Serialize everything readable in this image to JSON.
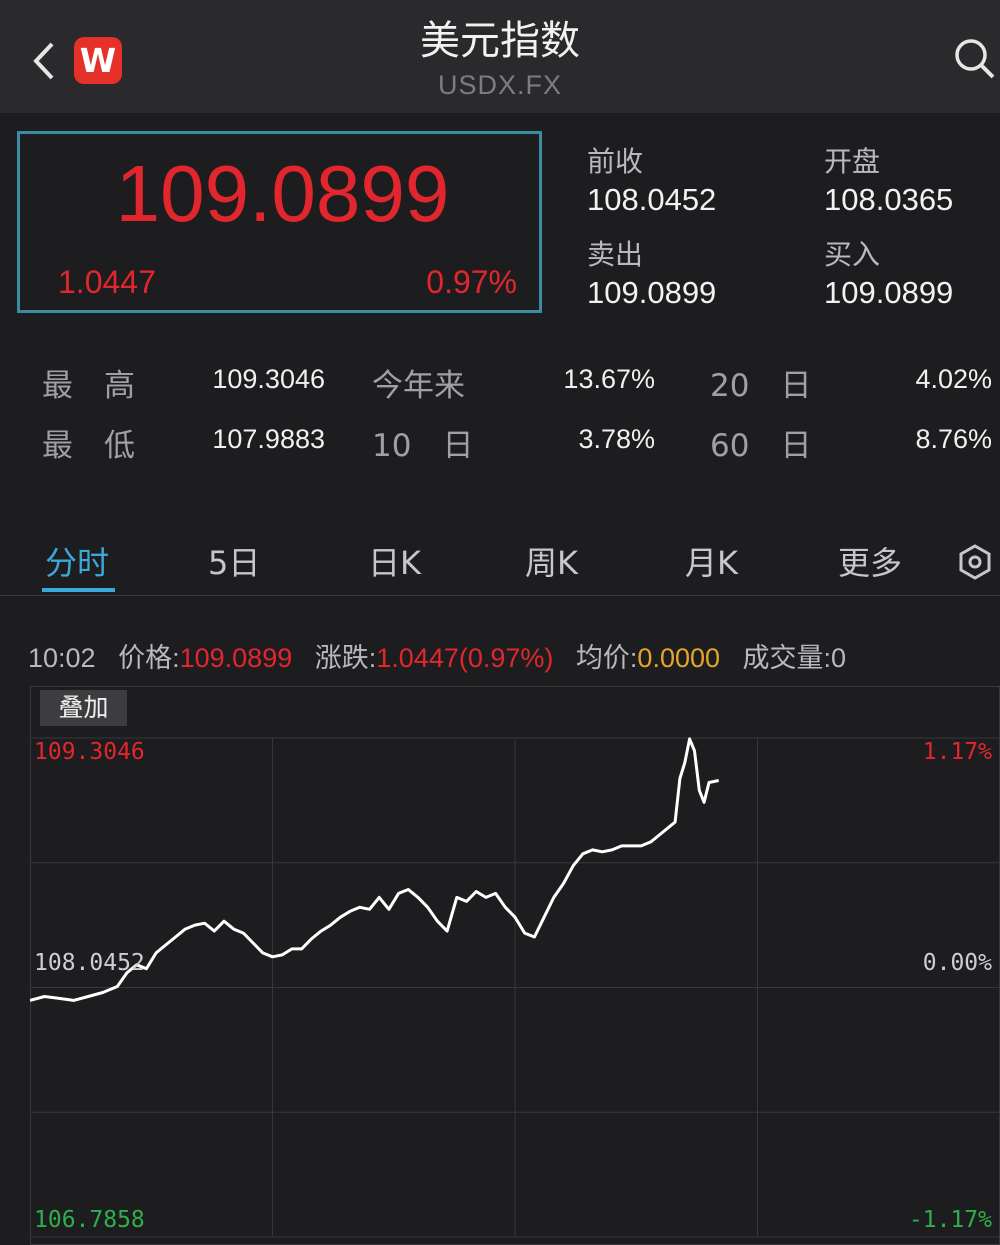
{
  "header": {
    "title": "美元指数",
    "subtitle": "USDX.FX",
    "logo_letter": "W"
  },
  "quote": {
    "price": "109.0899",
    "change": "1.0447",
    "change_pct": "0.97%",
    "prev_close_label": "前收",
    "prev_close": "108.0452",
    "open_label": "开盘",
    "open": "108.0365",
    "sell_label": "卖出",
    "sell": "109.0899",
    "buy_label": "买入",
    "buy": "109.0899"
  },
  "stats": {
    "high_label": "最　高",
    "high": "109.3046",
    "low_label": "最　低",
    "low": "107.9883",
    "ytd_label": "今年来",
    "ytd": "13.67%",
    "d10_label": "10　日",
    "d10": "3.78%",
    "d20_label": "20　日",
    "d20": "4.02%",
    "d60_label": "60　日",
    "d60": "8.76%"
  },
  "tabs": [
    "分时",
    "5日",
    "日K",
    "周K",
    "月K",
    "更多"
  ],
  "active_tab": "分时",
  "info": {
    "time": "10:02",
    "price_label": "价格:",
    "price": "109.0899",
    "change_label": "涨跌:",
    "change": "1.0447(0.97%)",
    "avg_label": "均价:",
    "avg": "0.0000",
    "volume_label": "成交量:",
    "volume": "0"
  },
  "overlay_button": "叠加",
  "colors": {
    "up": "#e2262d",
    "down": "#2fae4a",
    "accent": "#3aa8d8",
    "gold": "#e3a52a",
    "box_border": "#3b8ca3"
  },
  "icons": [
    "back-chevron-icon",
    "w-logo-icon",
    "search-icon",
    "settings-hexagon-icon"
  ],
  "chart_data": {
    "type": "line",
    "x_unit": "time progress (fraction of session)",
    "ylim": [
      106.7858,
      109.3046
    ],
    "y_left_labels": [
      "109.3046",
      "108.0452",
      "106.7858"
    ],
    "y_right_labels": [
      "1.17%",
      "0.00%",
      "-1.17%"
    ],
    "baseline": 108.0452,
    "grid": true,
    "series": [
      {
        "x": [
          0.0,
          0.015,
          0.03,
          0.045,
          0.06,
          0.075,
          0.09,
          0.1,
          0.11,
          0.12,
          0.13,
          0.14,
          0.15,
          0.16,
          0.17,
          0.18,
          0.19,
          0.2,
          0.21,
          0.22,
          0.23,
          0.24,
          0.25,
          0.26,
          0.27,
          0.28,
          0.29,
          0.3,
          0.31,
          0.32,
          0.33,
          0.34,
          0.35,
          0.36,
          0.37,
          0.38,
          0.39,
          0.4,
          0.41,
          0.42,
          0.43,
          0.44,
          0.45,
          0.46,
          0.47,
          0.48,
          0.49,
          0.5,
          0.51,
          0.52,
          0.53,
          0.54,
          0.55,
          0.56,
          0.57,
          0.58,
          0.59,
          0.6,
          0.61,
          0.62,
          0.63,
          0.64,
          0.65,
          0.66,
          0.665,
          0.67,
          0.675,
          0.68,
          0.685,
          0.69,
          0.695,
          0.7,
          0.71
        ],
        "y": [
          107.98,
          108.0,
          107.99,
          107.98,
          108.0,
          108.02,
          108.05,
          108.12,
          108.16,
          108.14,
          108.22,
          108.26,
          108.3,
          108.34,
          108.36,
          108.37,
          108.33,
          108.38,
          108.34,
          108.32,
          108.27,
          108.22,
          108.2,
          108.21,
          108.24,
          108.24,
          108.29,
          108.33,
          108.36,
          108.4,
          108.43,
          108.45,
          108.44,
          108.5,
          108.44,
          108.52,
          108.54,
          108.5,
          108.45,
          108.38,
          108.33,
          108.5,
          108.48,
          108.53,
          108.5,
          108.52,
          108.45,
          108.4,
          108.32,
          108.3,
          108.4,
          108.5,
          108.57,
          108.66,
          108.72,
          108.74,
          108.73,
          108.74,
          108.76,
          108.76,
          108.76,
          108.78,
          108.82,
          108.86,
          108.88,
          109.1,
          109.18,
          109.3,
          109.24,
          109.04,
          108.98,
          109.08,
          109.09
        ]
      }
    ]
  }
}
